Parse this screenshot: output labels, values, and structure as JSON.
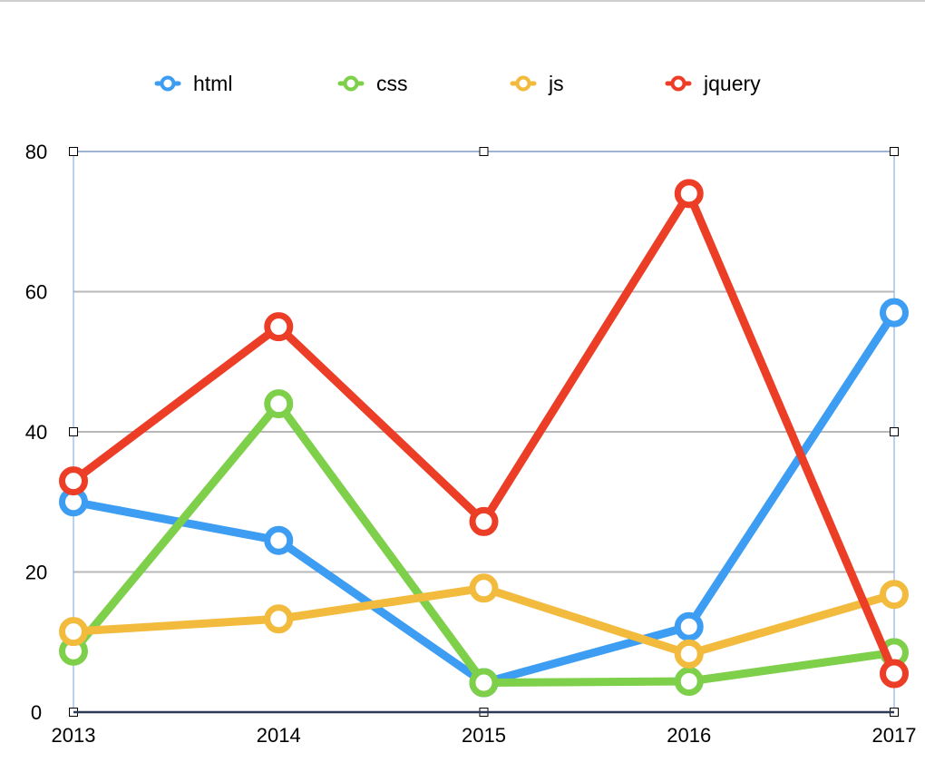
{
  "chart_data": {
    "type": "line",
    "title": "",
    "xlabel": "",
    "ylabel": "",
    "categories": [
      "2013",
      "2014",
      "2015",
      "2016",
      "2017"
    ],
    "ylim": [
      0,
      80
    ],
    "yticks": [
      0,
      20,
      40,
      60,
      80
    ],
    "grid": true,
    "legend_position": "top",
    "series": [
      {
        "name": "html",
        "color": "#3d9df2",
        "values": [
          30,
          24.5,
          4.2,
          12.2,
          57
        ]
      },
      {
        "name": "css",
        "color": "#7ecf4a",
        "values": [
          8.7,
          44,
          4.2,
          4.4,
          8.5
        ]
      },
      {
        "name": "js",
        "color": "#f2bb3d",
        "values": [
          11.5,
          13.3,
          17.7,
          8.3,
          16.8
        ]
      },
      {
        "name": "jquery",
        "color": "#ec3d26",
        "values": [
          33,
          55,
          27.2,
          74,
          5.5
        ]
      }
    ]
  }
}
